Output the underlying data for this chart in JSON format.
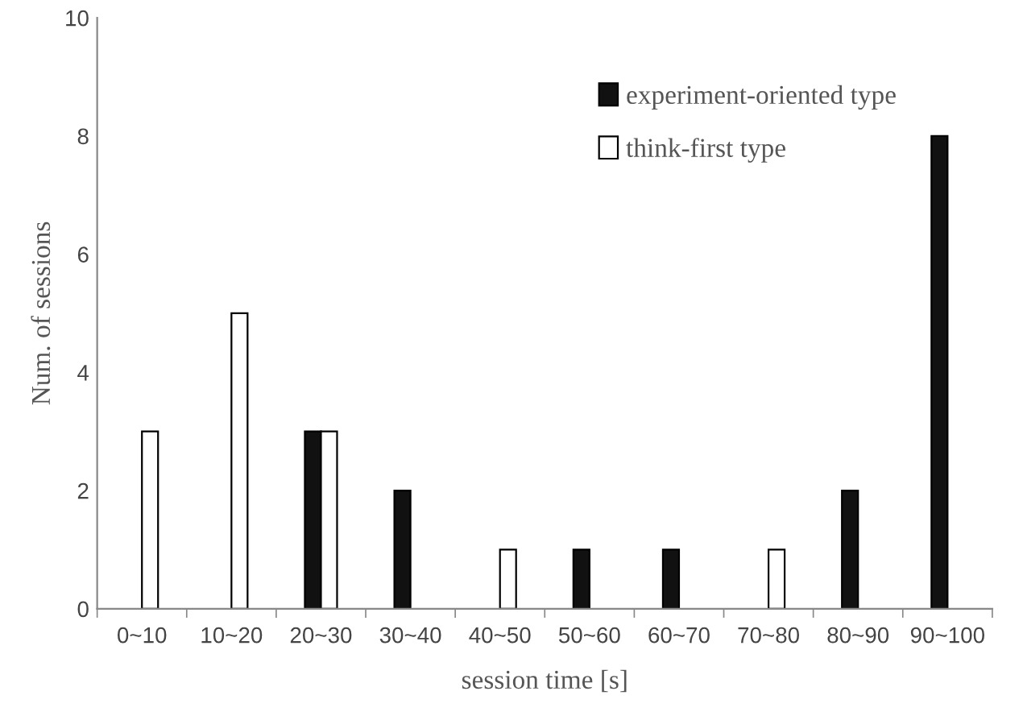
{
  "chart_data": {
    "type": "bar",
    "xlabel": "session time [s]",
    "ylabel": "Num. of sessions",
    "categories": [
      "0~10",
      "10~20",
      "20~30",
      "30~40",
      "40~50",
      "50~60",
      "60~70",
      "70~80",
      "80~90",
      "90~100"
    ],
    "series": [
      {
        "name": "experiment-oriented type",
        "color": "#111111",
        "values": [
          0,
          0,
          3,
          2,
          0,
          1,
          1,
          0,
          2,
          8
        ]
      },
      {
        "name": "think-first type",
        "color": "#ffffff",
        "values": [
          3,
          5,
          3,
          0,
          1,
          0,
          0,
          1,
          0,
          0
        ]
      }
    ],
    "ylim": [
      0,
      10
    ],
    "yticks": [
      0,
      2,
      4,
      6,
      8,
      10
    ],
    "grid": false,
    "legend": "top right"
  }
}
